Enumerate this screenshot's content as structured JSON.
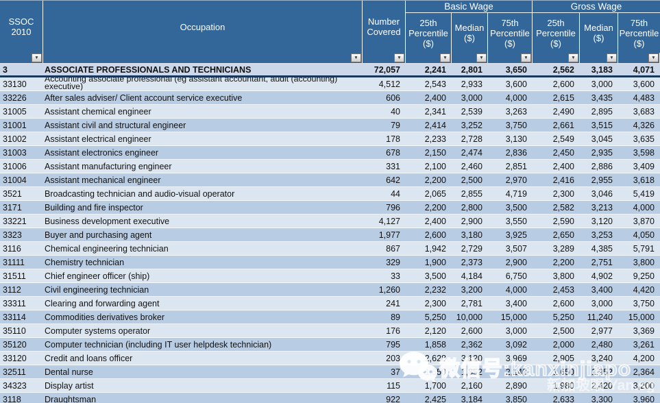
{
  "header": {
    "ssoc": "SSOC 2010",
    "occupation": "Occupation",
    "covered": "Number Covered",
    "basic_group": "Basic Wage",
    "gross_group": "Gross Wage",
    "p25": "25th Percentile ($)",
    "median": "Median ($)",
    "p75": "75th Percentile ($)"
  },
  "icons": {
    "filter_glyph": "▼",
    "watermark_icon": "wechat-icon"
  },
  "colors": {
    "header_bg": "#336699",
    "row_light": "#dce6f1",
    "row_dark": "#b8cce4",
    "total_row_bg": "#ccd8ea",
    "divider_navy": "#17375d"
  },
  "watermark": {
    "line1": "微信号:kanxinjiapo",
    "line2": "新加坡眼 Yan.sg"
  },
  "table": {
    "rows": [
      {
        "code": "3",
        "occupation": "ASSOCIATE PROFESSIONALS AND TECHNICIANS",
        "covered": "72,057",
        "basic": [
          "2,241",
          "2,801",
          "3,650"
        ],
        "gross": [
          "2,562",
          "3,183",
          "4,071"
        ]
      },
      {
        "code": "33130",
        "occupation": "Accounting associate professional (eg assistant accountant, audit (accounting) executive)",
        "covered": "4,512",
        "basic": [
          "2,543",
          "2,933",
          "3,600"
        ],
        "gross": [
          "2,600",
          "3,000",
          "3,600"
        ]
      },
      {
        "code": "33226",
        "occupation": "After sales adviser/ Client account service executive",
        "covered": "606",
        "basic": [
          "2,400",
          "3,000",
          "4,000"
        ],
        "gross": [
          "2,615",
          "3,435",
          "4,483"
        ]
      },
      {
        "code": "31005",
        "occupation": "Assistant chemical engineer",
        "covered": "40",
        "basic": [
          "2,341",
          "2,539",
          "3,263"
        ],
        "gross": [
          "2,490",
          "2,895",
          "3,683"
        ]
      },
      {
        "code": "31001",
        "occupation": "Assistant civil and structural engineer",
        "covered": "79",
        "basic": [
          "2,414",
          "3,252",
          "3,750"
        ],
        "gross": [
          "2,661",
          "3,515",
          "4,326"
        ]
      },
      {
        "code": "31002",
        "occupation": "Assistant electrical engineer",
        "covered": "178",
        "basic": [
          "2,233",
          "2,728",
          "3,130"
        ],
        "gross": [
          "2,549",
          "3,045",
          "3,635"
        ]
      },
      {
        "code": "31003",
        "occupation": "Assistant electronics engineer",
        "covered": "678",
        "basic": [
          "2,150",
          "2,474",
          "2,836"
        ],
        "gross": [
          "2,450",
          "2,935",
          "3,598"
        ]
      },
      {
        "code": "31006",
        "occupation": "Assistant manufacturing engineer",
        "covered": "331",
        "basic": [
          "2,100",
          "2,460",
          "2,851"
        ],
        "gross": [
          "2,400",
          "2,886",
          "3,409"
        ]
      },
      {
        "code": "31004",
        "occupation": "Assistant mechanical engineer",
        "covered": "642",
        "basic": [
          "2,200",
          "2,500",
          "2,970"
        ],
        "gross": [
          "2,416",
          "2,955",
          "3,618"
        ]
      },
      {
        "code": "3521",
        "occupation": "Broadcasting technician and audio-visual operator",
        "covered": "44",
        "basic": [
          "2,065",
          "2,855",
          "4,719"
        ],
        "gross": [
          "2,300",
          "3,046",
          "5,419"
        ]
      },
      {
        "code": "3171",
        "occupation": "Building and fire inspector",
        "covered": "796",
        "basic": [
          "2,200",
          "2,800",
          "3,500"
        ],
        "gross": [
          "2,582",
          "3,213",
          "4,000"
        ]
      },
      {
        "code": "33221",
        "occupation": "Business development executive",
        "covered": "4,127",
        "basic": [
          "2,400",
          "2,900",
          "3,550"
        ],
        "gross": [
          "2,590",
          "3,120",
          "3,870"
        ]
      },
      {
        "code": "3323",
        "occupation": "Buyer and purchasing agent",
        "covered": "1,977",
        "basic": [
          "2,600",
          "3,180",
          "3,925"
        ],
        "gross": [
          "2,650",
          "3,253",
          "4,050"
        ]
      },
      {
        "code": "3116",
        "occupation": "Chemical engineering technician",
        "covered": "867",
        "basic": [
          "1,942",
          "2,729",
          "3,507"
        ],
        "gross": [
          "3,289",
          "4,385",
          "5,791"
        ]
      },
      {
        "code": "31111",
        "occupation": "Chemistry technician",
        "covered": "329",
        "basic": [
          "1,900",
          "2,373",
          "2,900"
        ],
        "gross": [
          "2,200",
          "2,751",
          "3,800"
        ]
      },
      {
        "code": "31511",
        "occupation": "Chief engineer officer (ship)",
        "covered": "33",
        "basic": [
          "3,500",
          "4,184",
          "6,750"
        ],
        "gross": [
          "3,800",
          "4,902",
          "9,250"
        ]
      },
      {
        "code": "3112",
        "occupation": "Civil engineering technician",
        "covered": "1,260",
        "basic": [
          "2,232",
          "3,200",
          "4,000"
        ],
        "gross": [
          "2,453",
          "3,400",
          "4,420"
        ]
      },
      {
        "code": "33311",
        "occupation": "Clearing and forwarding agent",
        "covered": "241",
        "basic": [
          "2,300",
          "2,781",
          "3,400"
        ],
        "gross": [
          "2,600",
          "3,000",
          "3,750"
        ]
      },
      {
        "code": "33114",
        "occupation": "Commodities derivatives broker",
        "covered": "89",
        "basic": [
          "5,250",
          "10,000",
          "15,000"
        ],
        "gross": [
          "5,250",
          "11,240",
          "15,000"
        ]
      },
      {
        "code": "35110",
        "occupation": "Computer systems operator",
        "covered": "176",
        "basic": [
          "2,120",
          "2,600",
          "3,000"
        ],
        "gross": [
          "2,500",
          "2,977",
          "3,369"
        ]
      },
      {
        "code": "35120",
        "occupation": "Computer technician (including IT user helpdesk technician)",
        "covered": "795",
        "basic": [
          "1,858",
          "2,362",
          "3,092"
        ],
        "gross": [
          "2,000",
          "2,480",
          "3,261"
        ]
      },
      {
        "code": "33120",
        "occupation": "Credit and loans officer",
        "covered": "203",
        "basic": [
          "2,628",
          "3,120",
          "3,969"
        ],
        "gross": [
          "2,905",
          "3,240",
          "4,200"
        ]
      },
      {
        "code": "32511",
        "occupation": "Dental nurse",
        "covered": "37",
        "basic": [
          "1,650",
          "1,852",
          "2,140"
        ],
        "gross": [
          "1,650",
          "1,952",
          "2,364"
        ]
      },
      {
        "code": "34323",
        "occupation": "Display artist",
        "covered": "115",
        "basic": [
          "1,700",
          "2,160",
          "2,890"
        ],
        "gross": [
          "1,980",
          "2,420",
          "3,200"
        ]
      },
      {
        "code": "3118",
        "occupation": "Draughtsman",
        "covered": "922",
        "basic": [
          "2,425",
          "3,184",
          "3,850"
        ],
        "gross": [
          "2,633",
          "3,300",
          "3,960"
        ]
      }
    ]
  }
}
